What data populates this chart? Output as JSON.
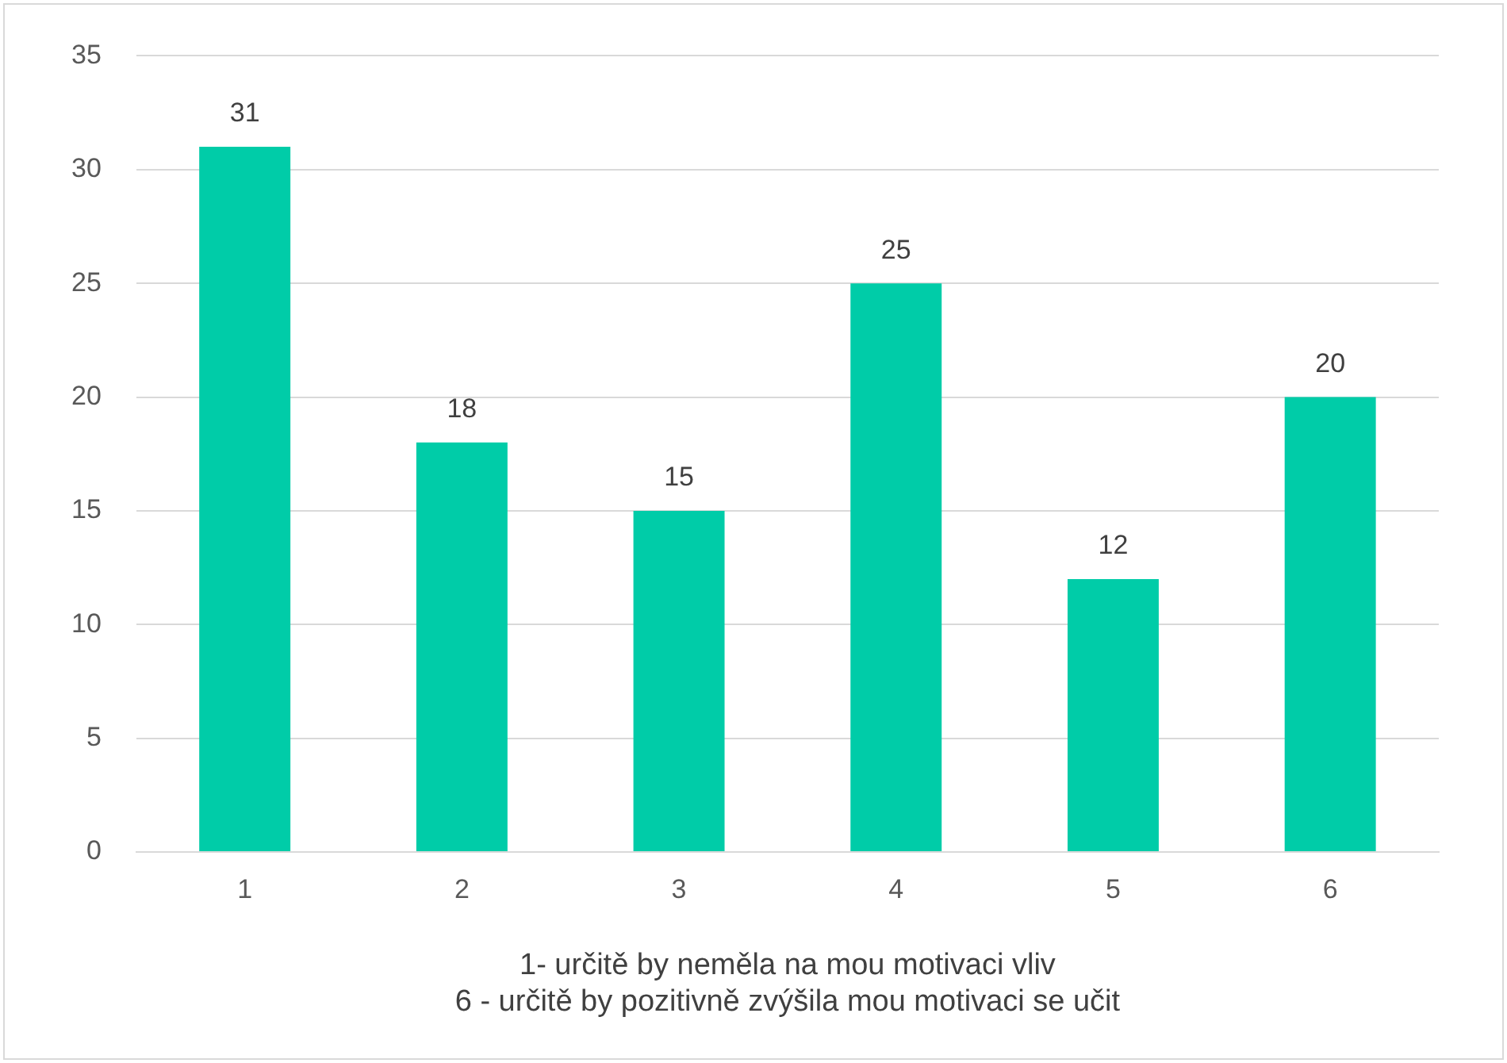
{
  "chart_data": {
    "type": "bar",
    "categories": [
      "1",
      "2",
      "3",
      "4",
      "5",
      "6"
    ],
    "values": [
      31,
      18,
      15,
      25,
      12,
      20
    ],
    "color": "#00cca8",
    "ylim": [
      0,
      35
    ],
    "yticks": [
      0,
      5,
      10,
      15,
      20,
      25,
      30,
      35
    ],
    "grid": "y",
    "legend": false,
    "data_labels": true,
    "xlabel": "1- určitě by neměla na mou motivaci vliv\n6 - určitě by pozitivně zvýšila mou motivaci se učit"
  }
}
